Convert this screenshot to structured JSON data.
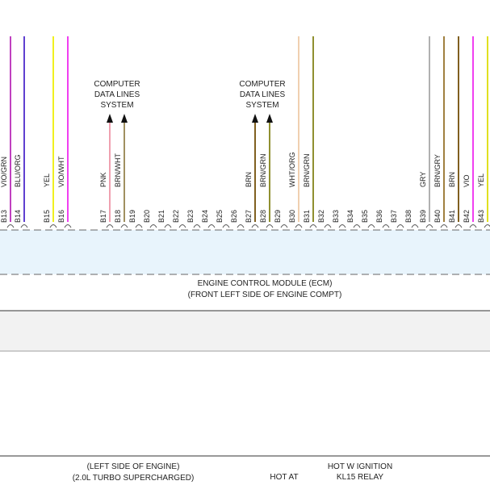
{
  "callouts": [
    {
      "lines": [
        "COMPUTER",
        "DATA LINES",
        "SYSTEM"
      ],
      "pins": [
        "B17",
        "B18"
      ]
    },
    {
      "lines": [
        "COMPUTER",
        "DATA LINES",
        "SYSTEM"
      ],
      "pins": [
        "B27",
        "B28"
      ]
    }
  ],
  "pins": [
    {
      "id": "B13",
      "wire": "VIO/GRN",
      "color": "#c040c0"
    },
    {
      "id": "B14",
      "wire": "BLU/ORG",
      "color": "#6040d0"
    },
    {
      "id": "B15",
      "wire": "YEL",
      "color": "#f0f020"
    },
    {
      "id": "B16",
      "wire": "VIO/WHT",
      "color": "#f040f0"
    },
    {
      "id": "B17",
      "wire": "PNK",
      "color": "#f0a0b0"
    },
    {
      "id": "B18",
      "wire": "BRN/WHT",
      "color": "#a09060"
    },
    {
      "id": "B19"
    },
    {
      "id": "B20"
    },
    {
      "id": "B21"
    },
    {
      "id": "B22"
    },
    {
      "id": "B23"
    },
    {
      "id": "B24"
    },
    {
      "id": "B25"
    },
    {
      "id": "B26"
    },
    {
      "id": "B27",
      "wire": "BRN",
      "color": "#806020"
    },
    {
      "id": "B28",
      "wire": "BRN/GRN",
      "color": "#909030"
    },
    {
      "id": "B29"
    },
    {
      "id": "B30",
      "wire": "WHT/ORG",
      "color": "#f0d0b0"
    },
    {
      "id": "B31",
      "wire": "BRN/GRN",
      "color": "#909030"
    },
    {
      "id": "B32"
    },
    {
      "id": "B33"
    },
    {
      "id": "B34"
    },
    {
      "id": "B35"
    },
    {
      "id": "B36"
    },
    {
      "id": "B37"
    },
    {
      "id": "B38"
    },
    {
      "id": "B39",
      "wire": "GRY",
      "color": "#b0b0b0"
    },
    {
      "id": "B40",
      "wire": "BRN/GRY",
      "color": "#a08040"
    },
    {
      "id": "B41",
      "wire": "BRN",
      "color": "#806020"
    },
    {
      "id": "B42",
      "wire": "VIO",
      "color": "#f040f0"
    },
    {
      "id": "B43",
      "wire": "YEL",
      "color": "#e0e020"
    }
  ],
  "module": {
    "name": "ENGINE CONTROL MODULE (ECM)",
    "location": "(FRONT LEFT SIDE OF ENGINE COMPT)"
  },
  "bottom": {
    "left": [
      "(LEFT SIDE OF ENGINE)",
      "(2.0L TURBO SUPERCHARGED)"
    ],
    "middle": [
      "HOT AT"
    ],
    "right": [
      "HOT W IGNITION",
      "KL15 RELAY"
    ]
  }
}
